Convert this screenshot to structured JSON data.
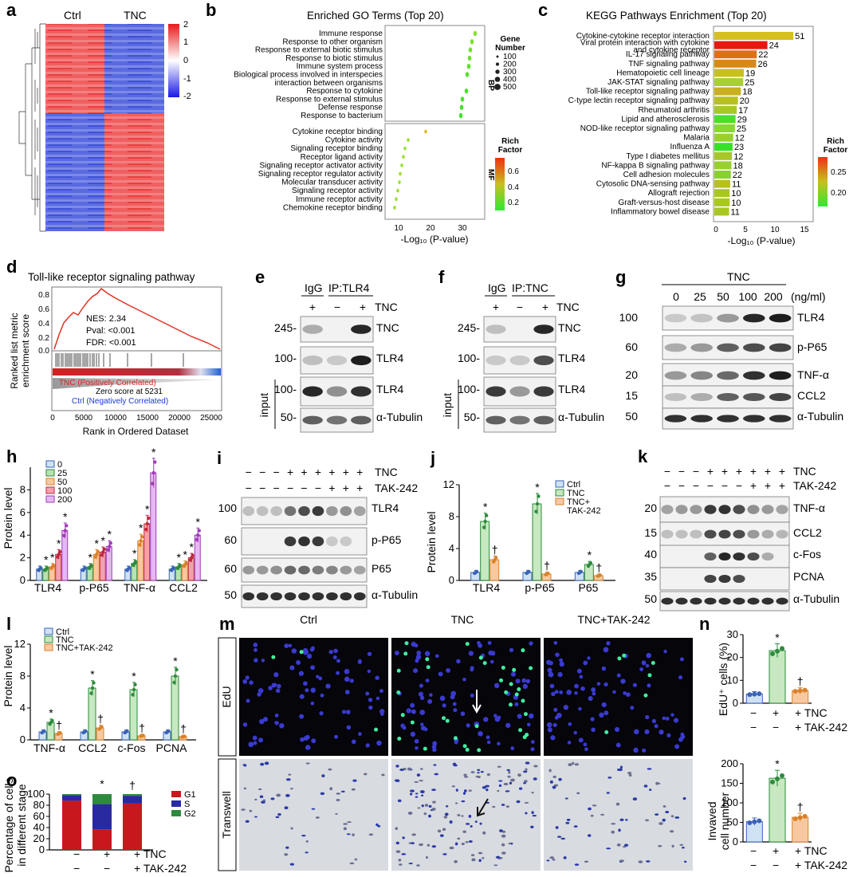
{
  "colors": {
    "ctrl": "#cfe2f3",
    "tnc": "#c7e8c0",
    "tak": "#f8c9a0",
    "ctrl_edge": "#3a63b8",
    "tnc_edge": "#2e8b3e",
    "tak_edge": "#d9822b",
    "dose": [
      "#cfe2f3",
      "#b9e2b2",
      "#f8c9a0",
      "#f2a2ad",
      "#e6b8f2"
    ],
    "dose_edge": [
      "#3a63b8",
      "#2e8b3e",
      "#d9822b",
      "#c0283e",
      "#a03cb8"
    ]
  },
  "panels": {
    "a": "a",
    "b": "b",
    "c": "c",
    "d": "d",
    "e": "e",
    "f": "f",
    "g": "g",
    "h": "h",
    "i": "i",
    "j": "j",
    "k": "k",
    "l": "l",
    "m": "m",
    "n": "n",
    "o": "o"
  },
  "a": {
    "ctrl": "Ctrl",
    "tnc": "TNC",
    "scale": [
      "2",
      "1",
      "0",
      "-1",
      "-2"
    ]
  },
  "b": {
    "title": "Enriched GO Terms (Top 20)",
    "xlabel": "-Log₁₀ (P-value)",
    "ticks": [
      "10",
      "20",
      "30"
    ],
    "bp_terms": [
      "Immune response",
      "Response to other organism",
      "Response to external biotic stimulus",
      "Response to biotic stimulus",
      "Immune system process",
      "Biological process involved in interspecies",
      "interaction between organisms",
      "Response to cytokine",
      "Response to external stimulus",
      "Defense response",
      "Response to bacterium"
    ],
    "mf_terms": [
      "Cytokine receptor binding",
      "Cytokine activity",
      "Signaling receptor binding",
      "Receptor ligand activity",
      "Signaling receptor activator activity",
      "Signaling receptor regulator activity",
      "Molecular transducer activity",
      "Signaling receptor activity",
      "Immune receptor activity",
      "Chemokine receptor binding"
    ],
    "bp_label": "BP",
    "mf_label": "MF",
    "gene_title": "Gene",
    "gene_title2": "Number",
    "gene_sizes": [
      "100",
      "200",
      "300",
      "400",
      "500"
    ],
    "rich_title": "Rich",
    "rich_title2": "Factor",
    "rich_ticks": [
      "0.6",
      "0.4",
      "0.2"
    ]
  },
  "c": {
    "title": "KEGG Pathways Enrichment (Top 20)",
    "xlabel": "-Log₁₀ (P-value)",
    "ticks": [
      "0",
      "5",
      "10",
      "15"
    ],
    "rich_title": "Rich",
    "rich_title2": "Factor",
    "rich_ticks": [
      "0.25",
      "0.20"
    ],
    "terms": [
      "Cytokine-cytokine receptor interaction",
      "Viral protein interaction with cytokine",
      "and cytokine receptor",
      "IL-17 signaling pathway",
      "TNF signaling pathway",
      "Hematopoietic cell lineage",
      "JAK-STAT signaling pathway",
      "Toll-like receptor signaling pathway",
      "C-type lectin receptor signaling pathway",
      "Rheumatoid arthritis",
      "Lipid and atherosclerosis",
      "NOD-like receptor signaling pathway",
      "Malaria",
      "Influenza A",
      "Type I diabetes mellitus",
      "NF-kappa B signaling pathway",
      "Cell adhesion molecules",
      "Cytosolic DNA-sensing pathway",
      "Allograft rejection",
      "Graft-versus-host disease",
      "Inflammatory bowel disease"
    ],
    "counts": [
      "51",
      "24",
      "22",
      "26",
      "19",
      "25",
      "18",
      "20",
      "17",
      "29",
      "25",
      "12",
      "23",
      "12",
      "18",
      "22",
      "11",
      "10",
      "10",
      "11"
    ]
  },
  "d": {
    "title": "Toll-like receptor signaling pathway",
    "nes": "NES: 2.34",
    "pval": "Pval: <0.001",
    "fdr": "FDR: <0.001",
    "pos": "TNC (Positively Correlated)",
    "zero": "Zero score at 5231",
    "neg": "Ctrl (Negatively Correlated)",
    "ylabel1": "Ranked list metric",
    "ylabel2": "enrichment score",
    "xlabel": "Rank in Ordered Dataset",
    "yticks": [
      "0.8",
      "0.6",
      "0.4",
      "0.2",
      "0.0"
    ],
    "xticks": [
      "0",
      "5000",
      "10000",
      "15000",
      "20000",
      "25000"
    ]
  },
  "e": {
    "igg": "IgG",
    "ip": "IP:TLR4",
    "signs": [
      "+",
      "−",
      "+"
    ],
    "tnc": "TNC",
    "mw": [
      "245-",
      "100-",
      "100-",
      "50-"
    ],
    "bands": [
      "TNC",
      "TLR4",
      "TLR4",
      "α-Tubulin"
    ],
    "input": "input"
  },
  "f": {
    "igg": "IgG",
    "ip": "IP:TNC",
    "signs": [
      "+",
      "−",
      "+"
    ],
    "tnc": "TNC",
    "mw": [
      "245-",
      "100-",
      "100-",
      "50-"
    ],
    "bands": [
      "TNC",
      "TLR4",
      "TLR4",
      "α-Tubulin"
    ],
    "input": "input"
  },
  "g": {
    "tnc": "TNC",
    "doses": [
      "0",
      "25",
      "50",
      "100",
      "200"
    ],
    "unit": "(ng/ml)",
    "mw": [
      "100",
      "60",
      "20",
      "15",
      "50"
    ],
    "bands": [
      "TLR4",
      "p-P65",
      "TNF-α",
      "CCL2",
      "α-Tubulin"
    ]
  },
  "h": {
    "ylabel": "Protein level",
    "yticks": [
      "0",
      "2",
      "4",
      "6",
      "8"
    ],
    "groups": [
      "TLR4",
      "p-P65",
      "TNF-α",
      "CCL2"
    ],
    "legend": [
      "0",
      "25",
      "50",
      "100",
      "200"
    ],
    "star": "*",
    "chart_data": {
      "type": "bar",
      "title": "",
      "xlabel": "",
      "ylabel": "Protein level",
      "ylim": [
        0,
        10
      ],
      "categories": [
        "TLR4",
        "p-P65",
        "TNF-α",
        "CCL2"
      ],
      "series": [
        {
          "name": "0",
          "values": [
            1,
            1,
            1,
            1
          ]
        },
        {
          "name": "25",
          "values": [
            1,
            1.2,
            1.5,
            1.2
          ]
        },
        {
          "name": "50",
          "values": [
            1.2,
            2.3,
            3.5,
            1.4
          ]
        },
        {
          "name": "100",
          "values": [
            2.3,
            2.5,
            5,
            2
          ]
        },
        {
          "name": "200",
          "values": [
            4.4,
            3,
            9.5,
            4
          ]
        }
      ]
    }
  },
  "i": {
    "tnc": "TNC",
    "tak": "TAK-242",
    "signs_tnc": [
      "−",
      "−",
      "−",
      "+",
      "+",
      "+",
      "+",
      "+",
      "+"
    ],
    "signs_tak": [
      "−",
      "−",
      "−",
      "−",
      "−",
      "−",
      "+",
      "+",
      "+"
    ],
    "mw": [
      "100",
      "60",
      "60",
      "50"
    ],
    "bands": [
      "TLR4",
      "p-P65",
      "P65",
      "α-Tubulin"
    ]
  },
  "j": {
    "ylabel": "Protein level",
    "yticks": [
      "0",
      "4",
      "8",
      "12"
    ],
    "groups": [
      "TLR4",
      "p-P65",
      "P65"
    ],
    "legend": [
      "Ctrl",
      "TNC",
      "TNC+",
      "TAK-242"
    ],
    "star": "*",
    "dagger": "†",
    "chart_data": {
      "type": "bar",
      "ylabel": "Protein level",
      "ylim": [
        0,
        12
      ],
      "categories": [
        "TLR4",
        "p-P65",
        "P65"
      ],
      "series": [
        {
          "name": "Ctrl",
          "values": [
            1,
            1,
            1
          ]
        },
        {
          "name": "TNC",
          "values": [
            7.4,
            9.6,
            2
          ]
        },
        {
          "name": "TNC+TAK-242",
          "values": [
            2.6,
            0.8,
            0.6
          ]
        }
      ]
    }
  },
  "k": {
    "tnc": "TNC",
    "tak": "TAK-242",
    "signs_tnc": [
      "−",
      "−",
      "−",
      "+",
      "+",
      "+",
      "+",
      "+",
      "+"
    ],
    "signs_tak": [
      "−",
      "−",
      "−",
      "−",
      "−",
      "−",
      "+",
      "+",
      "+"
    ],
    "mw": [
      "20",
      "15",
      "40",
      "35",
      "50"
    ],
    "bands": [
      "TNF-α",
      "CCL2",
      "c-Fos",
      "PCNA",
      "α-Tubulin"
    ]
  },
  "l": {
    "ylabel": "Protein level",
    "yticks": [
      "0",
      "4",
      "8",
      "12"
    ],
    "groups": [
      "TNF-α",
      "CCL2",
      "c-Fos",
      "PCNA"
    ],
    "legend": [
      "Ctrl",
      "TNC",
      "TNC+TAK-242"
    ],
    "star": "*",
    "dagger": "†",
    "chart_data": {
      "type": "bar",
      "ylabel": "Protein level",
      "ylim": [
        0,
        12
      ],
      "categories": [
        "TNF-α",
        "CCL2",
        "c-Fos",
        "PCNA"
      ],
      "series": [
        {
          "name": "Ctrl",
          "values": [
            1,
            1,
            1,
            1
          ]
        },
        {
          "name": "TNC",
          "values": [
            2.2,
            6.5,
            6.3,
            8
          ]
        },
        {
          "name": "TNC+TAK-242",
          "values": [
            0.8,
            1.5,
            0.5,
            0.4
          ]
        }
      ]
    }
  },
  "m": {
    "cols": [
      "Ctrl",
      "TNC",
      "TNC+TAK-242"
    ],
    "rows": [
      "EdU",
      "Transwell"
    ]
  },
  "n": {
    "ylabel1": "EdU⁺ cells (%)",
    "yticks1": [
      "0",
      "10",
      "20",
      "30"
    ],
    "ylabel2a": "Invaved",
    "ylabel2b": "cell number",
    "yticks2": [
      "0",
      "50",
      "100",
      "150",
      "200"
    ],
    "signs_tnc": [
      "−",
      "+",
      "+ TNC"
    ],
    "signs_tak": [
      "−",
      "−",
      "+ TAK-242"
    ],
    "star": "*",
    "dagger": "†",
    "chart_data": [
      {
        "type": "bar",
        "ylabel": "EdU+ cells (%)",
        "ylim": [
          0,
          30
        ],
        "categories": [
          "Ctrl",
          "TNC",
          "TNC+TAK-242"
        ],
        "values": [
          4,
          23,
          5.5
        ]
      },
      {
        "type": "bar",
        "ylabel": "Invaved cell number",
        "ylim": [
          0,
          200
        ],
        "categories": [
          "Ctrl",
          "TNC",
          "TNC+TAK-242"
        ],
        "values": [
          52,
          163,
          63
        ]
      }
    ]
  },
  "o": {
    "ylabel1": "Percentage of cells",
    "ylabel2": "in different stage",
    "yticks": [
      "0",
      "20",
      "40",
      "60",
      "80",
      "100"
    ],
    "legend": [
      "G1",
      "S",
      "G2"
    ],
    "signs_tnc": [
      "−",
      "+",
      "+ TNC"
    ],
    "signs_tak": [
      "−",
      "−",
      "+ TAK-242"
    ],
    "star": "*",
    "dagger": "†",
    "chart_data": {
      "type": "bar",
      "ylabel": "Percentage of cells in different stage",
      "ylim": [
        0,
        100
      ],
      "categories": [
        "Ctrl",
        "TNC",
        "TNC+TAK-242"
      ],
      "series": [
        {
          "name": "G1",
          "values": [
            88,
            37,
            83
          ]
        },
        {
          "name": "S",
          "values": [
            10,
            45,
            14
          ]
        },
        {
          "name": "G2",
          "values": [
            2,
            18,
            3
          ]
        }
      ]
    }
  }
}
